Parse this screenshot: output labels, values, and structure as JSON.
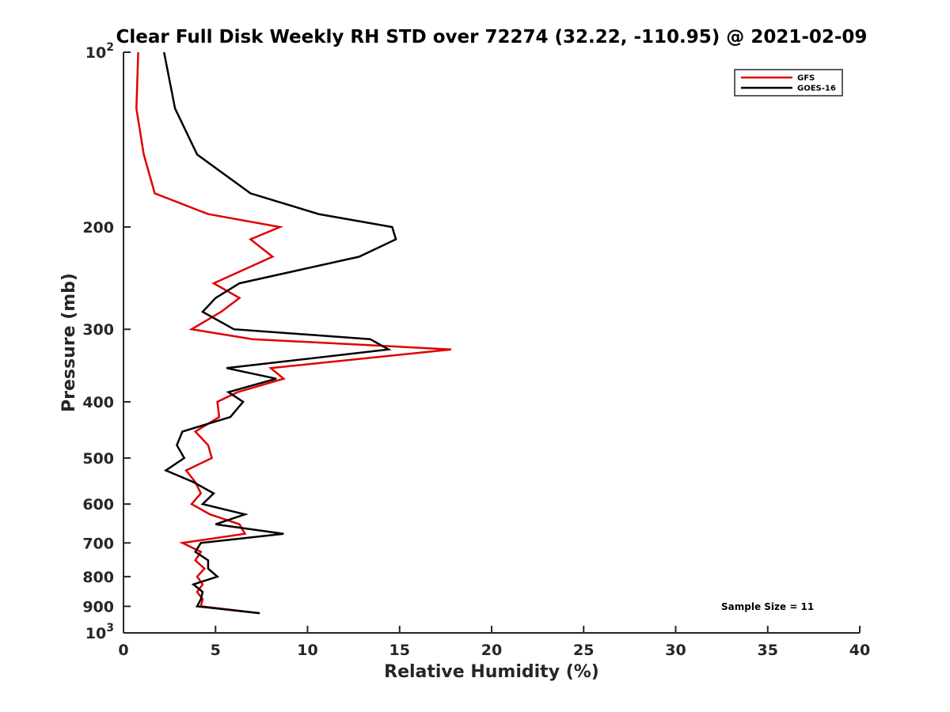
{
  "chart_data": {
    "type": "line",
    "title": "Clear Full Disk Weekly RH STD over 72274 (32.22, -110.95) @ 2021-02-09",
    "xlabel": "Relative Humidity (%)",
    "ylabel": "Pressure (mb)",
    "xlim": [
      0,
      40
    ],
    "ylim": [
      100,
      1000
    ],
    "y_scale": "log",
    "y_reversed": true,
    "x_ticks": [
      "0",
      "5",
      "10",
      "15",
      "20",
      "25",
      "30",
      "35",
      "40"
    ],
    "y_ticks": [
      {
        "value": 100,
        "base": "10",
        "exp": "2"
      },
      {
        "value": 200,
        "label": "200"
      },
      {
        "value": 300,
        "label": "300"
      },
      {
        "value": 400,
        "label": "400"
      },
      {
        "value": 500,
        "label": "500"
      },
      {
        "value": 600,
        "label": "600"
      },
      {
        "value": 700,
        "label": "700"
      },
      {
        "value": 800,
        "label": "800"
      },
      {
        "value": 900,
        "label": "900"
      },
      {
        "value": 1000,
        "base": "10",
        "exp": "3"
      }
    ],
    "grid": false,
    "legend_position": "top-right",
    "annotation": "Sample Size = 11",
    "series": [
      {
        "name": "GFS",
        "color": "#e00000",
        "points": [
          [
            0.8,
            100
          ],
          [
            0.7,
            125
          ],
          [
            1.1,
            150
          ],
          [
            1.7,
            175
          ],
          [
            4.6,
            190
          ],
          [
            8.5,
            200
          ],
          [
            6.9,
            210
          ],
          [
            8.1,
            225
          ],
          [
            4.9,
            250
          ],
          [
            6.3,
            265
          ],
          [
            5.3,
            280
          ],
          [
            3.7,
            300
          ],
          [
            7.0,
            312
          ],
          [
            17.8,
            325
          ],
          [
            8.0,
            350
          ],
          [
            8.7,
            365
          ],
          [
            6.2,
            385
          ],
          [
            5.1,
            400
          ],
          [
            5.2,
            425
          ],
          [
            3.9,
            450
          ],
          [
            4.6,
            475
          ],
          [
            4.8,
            500
          ],
          [
            3.4,
            525
          ],
          [
            3.9,
            550
          ],
          [
            4.2,
            575
          ],
          [
            3.7,
            600
          ],
          [
            4.7,
            625
          ],
          [
            6.3,
            650
          ],
          [
            6.6,
            675
          ],
          [
            3.2,
            700
          ],
          [
            4.2,
            725
          ],
          [
            3.9,
            750
          ],
          [
            4.4,
            775
          ],
          [
            4.0,
            800
          ],
          [
            4.3,
            825
          ],
          [
            4.0,
            850
          ],
          [
            4.3,
            875
          ],
          [
            4.2,
            900
          ],
          [
            7.4,
            925
          ]
        ]
      },
      {
        "name": "GOES-16",
        "color": "#000000",
        "points": [
          [
            2.2,
            100
          ],
          [
            2.8,
            125
          ],
          [
            4.0,
            150
          ],
          [
            6.9,
            175
          ],
          [
            10.6,
            190
          ],
          [
            14.6,
            200
          ],
          [
            14.8,
            210
          ],
          [
            12.8,
            225
          ],
          [
            6.3,
            250
          ],
          [
            5.0,
            265
          ],
          [
            4.3,
            280
          ],
          [
            6.0,
            300
          ],
          [
            13.4,
            312
          ],
          [
            14.4,
            325
          ],
          [
            5.6,
            350
          ],
          [
            8.3,
            365
          ],
          [
            5.7,
            385
          ],
          [
            6.5,
            400
          ],
          [
            5.8,
            425
          ],
          [
            3.2,
            450
          ],
          [
            2.9,
            475
          ],
          [
            3.3,
            500
          ],
          [
            2.3,
            525
          ],
          [
            3.8,
            550
          ],
          [
            4.9,
            575
          ],
          [
            4.3,
            600
          ],
          [
            6.6,
            625
          ],
          [
            5.0,
            650
          ],
          [
            8.7,
            675
          ],
          [
            4.2,
            700
          ],
          [
            3.9,
            725
          ],
          [
            4.6,
            750
          ],
          [
            4.6,
            775
          ],
          [
            5.1,
            800
          ],
          [
            3.8,
            825
          ],
          [
            4.3,
            850
          ],
          [
            4.2,
            875
          ],
          [
            4.0,
            900
          ],
          [
            7.4,
            925
          ]
        ]
      }
    ]
  }
}
